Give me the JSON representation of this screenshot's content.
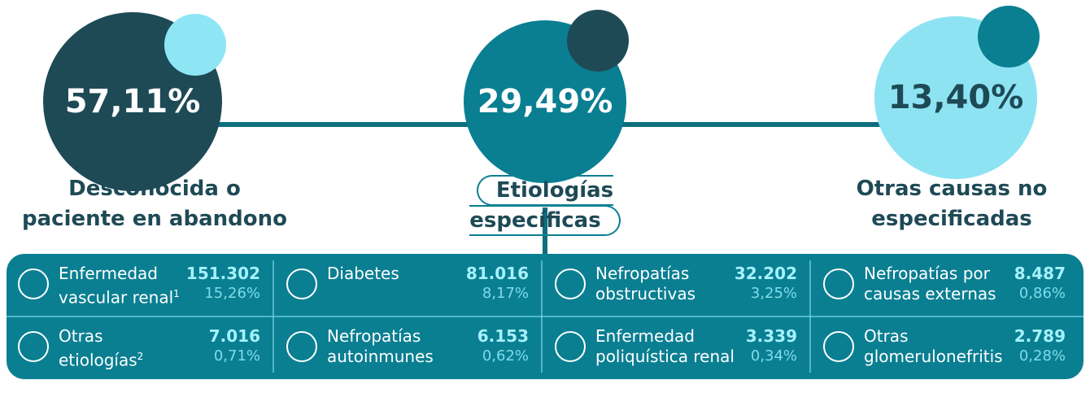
{
  "groups": [
    {
      "percent": "57,11%",
      "label_lines": [
        "Desconocida o",
        "paciente en abandono"
      ]
    },
    {
      "percent": "29,49%",
      "label_lines": [
        "Etiologías específicas"
      ]
    },
    {
      "percent": "13,40%",
      "label_lines": [
        "Otras causas no",
        "especificadas"
      ]
    }
  ],
  "table": {
    "cells": [
      {
        "name_lines": [
          "Enfermedad",
          "vascular renal"
        ],
        "note": "1",
        "count": "151.302",
        "percent": "15,26%"
      },
      {
        "name_lines": [
          "Diabetes"
        ],
        "count": "81.016",
        "percent": "8,17%"
      },
      {
        "name_lines": [
          "Nefropatías",
          "obstructivas"
        ],
        "count": "32.202",
        "percent": "3,25%"
      },
      {
        "name_lines": [
          "Nefropatías por",
          "causas externas"
        ],
        "count": "8.487",
        "percent": "0,86%"
      },
      {
        "name_lines": [
          "Otras",
          "etiologías"
        ],
        "note": "2",
        "count": "7.016",
        "percent": "0,71%"
      },
      {
        "name_lines": [
          "Nefropatías",
          "autoinmunes"
        ],
        "count": "6.153",
        "percent": "0,62%"
      },
      {
        "name_lines": [
          "Enfermedad",
          "poliquística renal"
        ],
        "count": "3.339",
        "percent": "0,34%"
      },
      {
        "name_lines": [
          "Otras",
          "glomerulonefritis"
        ],
        "count": "2.789",
        "percent": "0,28%"
      }
    ]
  }
}
